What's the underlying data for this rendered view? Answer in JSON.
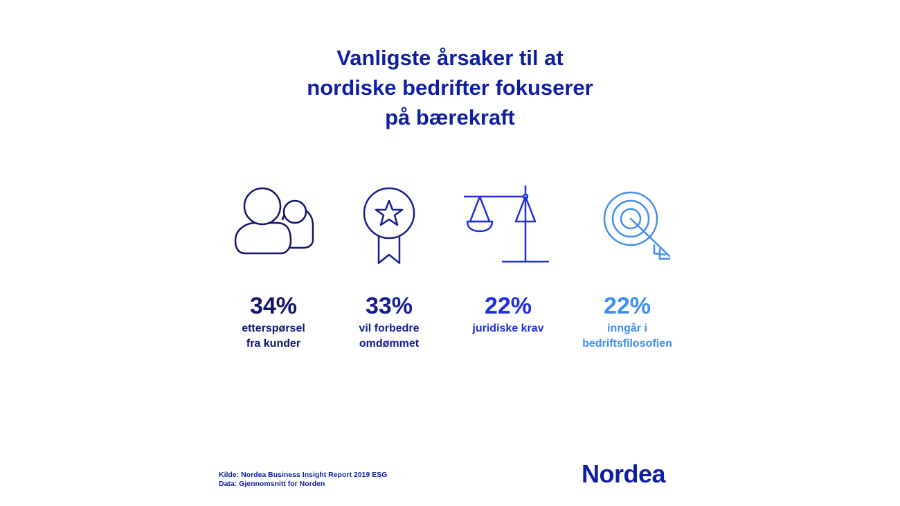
{
  "title": {
    "line1": "Vanligste årsaker til at",
    "line2": "nordiske bedrifter fokuserer",
    "line3": "på bærekraft"
  },
  "chart_data": {
    "type": "table",
    "categories": [
      "etterspørsel fra kunder",
      "vil forbedre omdømmet",
      "juridiske krav",
      "inngår i bedriftsfilosofien"
    ],
    "values": [
      34,
      33,
      22,
      22
    ],
    "unit": "%"
  },
  "items": [
    {
      "value": "34%",
      "label_lines": [
        "etterspørsel",
        "fra kunder"
      ],
      "icon": "people-icon",
      "color": "#10156b"
    },
    {
      "value": "33%",
      "label_lines": [
        "vil forbedre",
        "omdømmet"
      ],
      "icon": "award-star-icon",
      "color": "#141c96"
    },
    {
      "value": "22%",
      "label_lines": [
        "juridiske krav"
      ],
      "icon": "scales-icon",
      "color": "#1d2ee0"
    },
    {
      "value": "22%",
      "label_lines": [
        "inngår i",
        "bedriftsfilosofien"
      ],
      "icon": "target-arrow-icon",
      "color": "#3d8ef0"
    }
  ],
  "footer": {
    "source": "Kilde: Nordea Business Insight Report 2019 ESG",
    "data": "Data: Gjennomsnitt for Norden"
  },
  "logo": "Nordea"
}
